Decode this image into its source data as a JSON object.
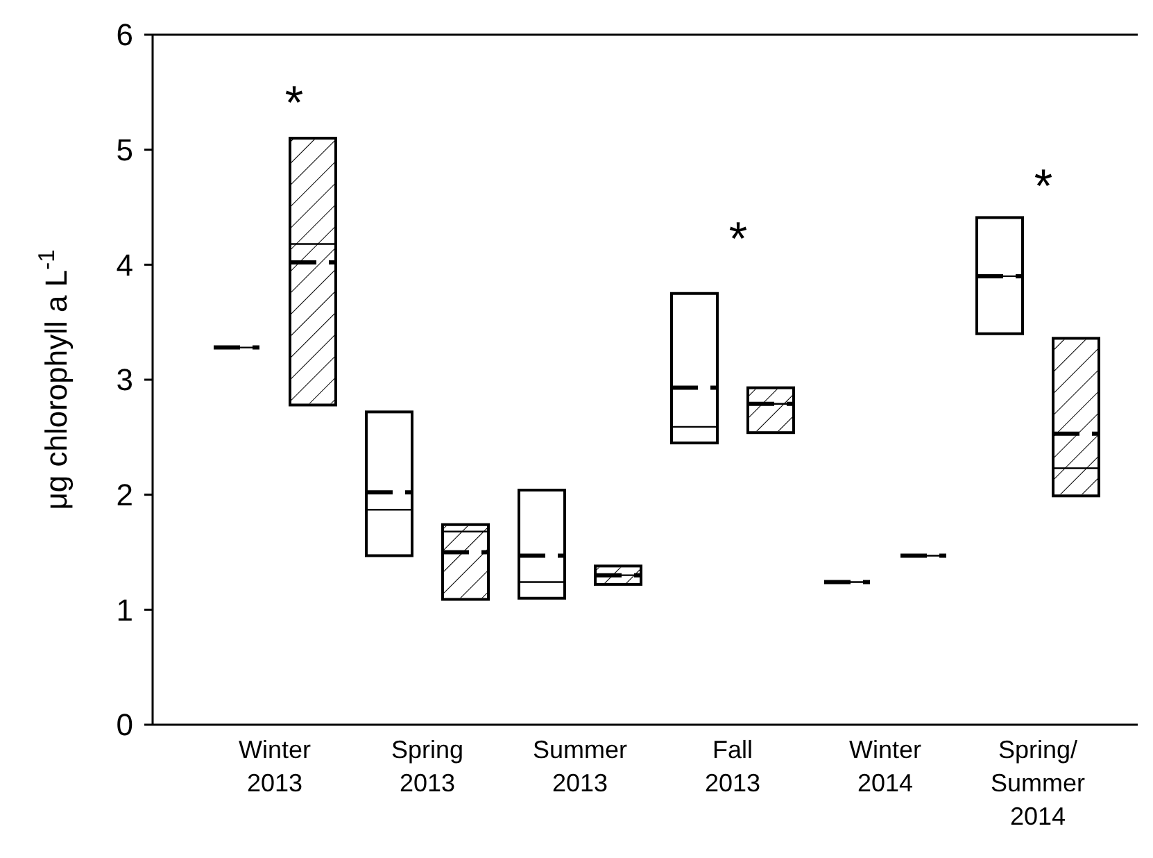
{
  "chart_data": {
    "type": "box",
    "ylabel": "μg chlorophyll a L$^{-1}$",
    "categories": [
      "Winter\n2013",
      "Spring\n2013",
      "Summer\n2013",
      "Fall\n2013",
      "Winter\n2014",
      "Spring/\nSummer\n2014"
    ],
    "series": [
      {
        "color": "#000000",
        "boxes": [
          {
            "low": 3.28,
            "q1": 3.28,
            "median": 3.28,
            "q3": 3.28,
            "high": 3.28,
            "mean": 3.28
          },
          {
            "low": 1.47,
            "q1": 1.47,
            "median": 1.87,
            "q3": 2.72,
            "high": 2.72,
            "mean": 2.02
          },
          {
            "low": 1.1,
            "q1": 1.1,
            "median": 1.24,
            "q3": 2.04,
            "high": 2.04,
            "mean": 1.47
          },
          {
            "low": 2.45,
            "q1": 2.45,
            "median": 2.59,
            "q3": 3.75,
            "high": 3.75,
            "mean": 2.93
          },
          {
            "low": 1.24,
            "q1": 1.24,
            "median": 1.24,
            "q3": 1.24,
            "high": 1.24,
            "mean": 1.24
          },
          {
            "low": 3.4,
            "q1": 3.4,
            "median": 3.9,
            "q3": 4.41,
            "high": 4.41,
            "mean": 3.9
          }
        ]
      },
      {
        "color": "#000000",
        "boxes": [
          {
            "low": 2.78,
            "q1": 2.78,
            "median": 4.18,
            "q3": 5.1,
            "high": 5.1,
            "mean": 4.02
          },
          {
            "low": 1.09,
            "q1": 1.09,
            "median": 1.68,
            "q3": 1.74,
            "high": 1.74,
            "mean": 1.5
          },
          {
            "low": 1.22,
            "q1": 1.22,
            "median": 1.3,
            "q3": 1.38,
            "high": 1.38,
            "mean": 1.3
          },
          {
            "low": 2.54,
            "q1": 2.54,
            "median": 2.79,
            "q3": 2.93,
            "high": 2.93,
            "mean": 2.79
          },
          {
            "low": 1.47,
            "q1": 1.47,
            "median": 1.47,
            "q3": 1.47,
            "high": 1.47,
            "mean": 1.47
          },
          {
            "low": 1.99,
            "q1": 1.99,
            "median": 2.23,
            "q3": 3.36,
            "high": 3.36,
            "mean": 2.53
          }
        ]
      }
    ],
    "ylim": [
      0,
      6
    ],
    "yticks": [
      0,
      1,
      2,
      3,
      4,
      5,
      6
    ],
    "grid": false,
    "annotations": [
      "*",
      "*",
      "*"
    ]
  }
}
